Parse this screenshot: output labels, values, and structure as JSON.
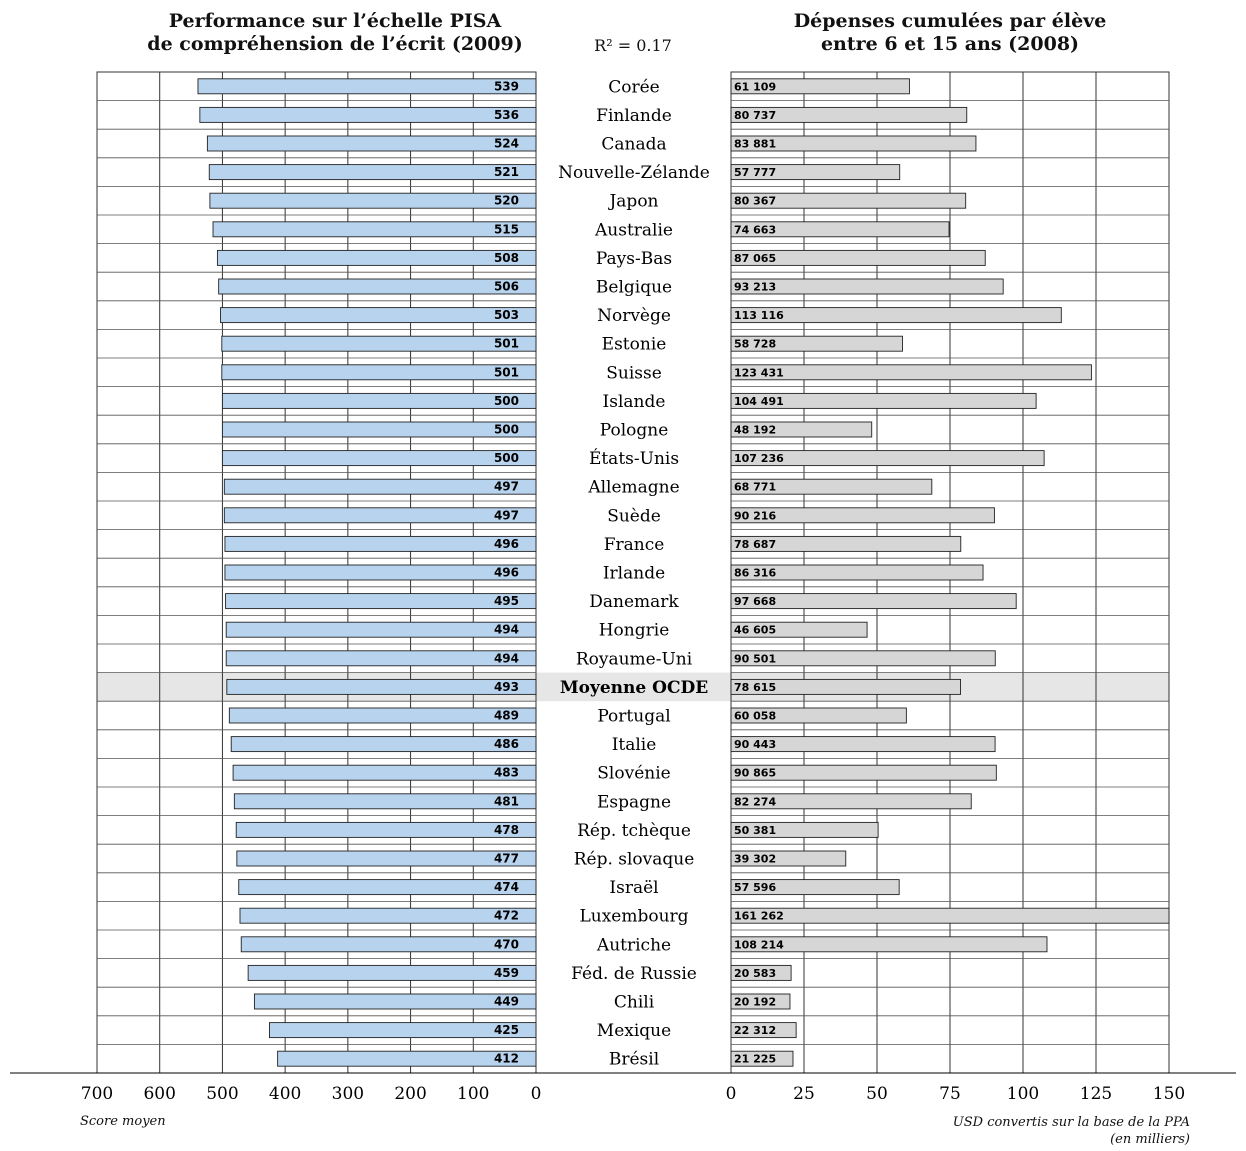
{
  "left_title_line1": "Performance sur l’échelle PISA",
  "left_title_line2": "de compréhension de l’écrit (2009)",
  "right_title_line1": "Dépenses cumulées par élève",
  "right_title_line2": "entre 6 et 15 ans (2008)",
  "r2_label": "R² = 0.17",
  "left_axis_note": "Score moyen",
  "right_axis_note_line1": "USD convertis sur la base de la PPA",
  "right_axis_note_line2": "(en milliers)",
  "colors": {
    "left_bar": "#b8d3ee",
    "right_bar": "#d6d6d6",
    "highlight_row": "#e6e6e6",
    "grid": "#333333"
  },
  "chart_data": [
    {
      "type": "bar",
      "orientation": "horizontal",
      "title": "Performance sur l’échelle PISA de compréhension de l’écrit (2009)",
      "xlabel": "Score moyen",
      "xlim": [
        700,
        0
      ],
      "xticks": [
        700,
        600,
        500,
        400,
        300,
        200,
        100,
        0
      ],
      "categories": [
        "Corée",
        "Finlande",
        "Canada",
        "Nouvelle-Zélande",
        "Japon",
        "Australie",
        "Pays-Bas",
        "Belgique",
        "Norvège",
        "Estonie",
        "Suisse",
        "Islande",
        "Pologne",
        "États-Unis",
        "Allemagne",
        "Suède",
        "France",
        "Irlande",
        "Danemark",
        "Hongrie",
        "Royaume-Uni",
        "Moyenne OCDE",
        "Portugal",
        "Italie",
        "Slovénie",
        "Espagne",
        "Rép. tchèque",
        "Rép. slovaque",
        "Israël",
        "Luxembourg",
        "Autriche",
        "Féd. de Russie",
        "Chili",
        "Mexique",
        "Brésil"
      ],
      "values": [
        539,
        536,
        524,
        521,
        520,
        515,
        508,
        506,
        503,
        501,
        501,
        500,
        500,
        500,
        497,
        497,
        496,
        496,
        495,
        494,
        494,
        493,
        489,
        486,
        483,
        481,
        478,
        477,
        474,
        472,
        470,
        459,
        449,
        425,
        412
      ],
      "highlight": "Moyenne OCDE"
    },
    {
      "type": "bar",
      "orientation": "horizontal",
      "title": "Dépenses cumulées par élève entre 6 et 15 ans (2008)",
      "xlabel": "USD convertis sur la base de la PPA (en milliers)",
      "xlim": [
        0,
        150
      ],
      "xticks": [
        0,
        25,
        50,
        75,
        100,
        125,
        150
      ],
      "values": [
        61109,
        80737,
        83881,
        57777,
        80367,
        74663,
        87065,
        93213,
        113116,
        58728,
        123431,
        104491,
        48192,
        107236,
        68771,
        90216,
        78687,
        86316,
        97668,
        46605,
        90501,
        78615,
        60058,
        90443,
        90865,
        82274,
        50381,
        39302,
        57596,
        161262,
        108214,
        20583,
        20192,
        22312,
        21225
      ],
      "labels": [
        "61 109",
        "80 737",
        "83 881",
        "57 777",
        "80 367",
        "74 663",
        "87 065",
        "93 213",
        "113 116",
        "58 728",
        "123 431",
        "104 491",
        "48 192",
        "107 236",
        "68 771",
        "90 216",
        "78 687",
        "86 316",
        "97 668",
        "46 605",
        "90 501",
        "78 615",
        "60 058",
        "90 443",
        "90 865",
        "82 274",
        "50 381",
        "39 302",
        "57 596",
        "161 262",
        "108 214",
        "20 583",
        "20 192",
        "22 312",
        "21 225"
      ]
    }
  ],
  "r2": 0.17
}
